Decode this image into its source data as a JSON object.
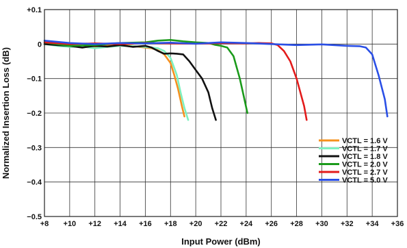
{
  "chart_data": {
    "type": "line",
    "title": "",
    "xlabel": "Input Power (dBm)",
    "ylabel": "Normalized Insertion Loss (dB)",
    "xlim": [
      8,
      36
    ],
    "ylim": [
      -0.5,
      0.1
    ],
    "xticks": [
      8,
      10,
      12,
      14,
      16,
      18,
      20,
      22,
      24,
      26,
      28,
      30,
      32,
      34,
      36
    ],
    "xtick_labels": [
      "+8",
      "+10",
      "+12",
      "+14",
      "+16",
      "+18",
      "+20",
      "+22",
      "+24",
      "+26",
      "+28",
      "+30",
      "+32",
      "+34",
      "+36"
    ],
    "yticks": [
      0.1,
      0,
      -0.1,
      -0.2,
      -0.3,
      -0.4,
      -0.5
    ],
    "ytick_labels": [
      "+0.1",
      "0",
      "−0.1",
      "−0.2",
      "−0.3",
      "−0.4",
      "−0.5"
    ],
    "grid": true,
    "legend_position": "bottom-right",
    "series": [
      {
        "name": "VCTL = 1.6 V",
        "color": "#f5901e",
        "x": [
          8,
          9,
          10,
          11,
          12,
          13,
          14,
          15,
          15.5,
          16,
          16.5,
          17,
          17.5,
          18,
          18.3,
          18.6,
          18.9,
          19.1
        ],
        "y": [
          0,
          -0.003,
          -0.005,
          -0.008,
          -0.01,
          -0.005,
          -0.003,
          -0.005,
          -0.008,
          -0.01,
          -0.012,
          -0.018,
          -0.03,
          -0.055,
          -0.09,
          -0.13,
          -0.18,
          -0.21
        ]
      },
      {
        "name": "VCTL = 1.7 V",
        "color": "#7ef0bf",
        "x": [
          8,
          9,
          10,
          11,
          12,
          13,
          14,
          15,
          16,
          16.5,
          17,
          17.5,
          18,
          18.5,
          18.8,
          19.1,
          19.4
        ],
        "y": [
          0,
          -0.005,
          -0.008,
          -0.007,
          -0.012,
          -0.008,
          -0.005,
          -0.006,
          -0.008,
          -0.01,
          -0.012,
          -0.02,
          -0.04,
          -0.09,
          -0.14,
          -0.185,
          -0.22
        ]
      },
      {
        "name": "VCTL = 1.8 V",
        "color": "#111111",
        "x": [
          8,
          9,
          10,
          11,
          12,
          13,
          14,
          15,
          16,
          16.5,
          17,
          17.5,
          18,
          18.5,
          19,
          19.5,
          20,
          20.5,
          21,
          21.3,
          21.6
        ],
        "y": [
          0,
          -0.003,
          -0.005,
          -0.01,
          -0.005,
          -0.007,
          -0.003,
          -0.008,
          -0.005,
          -0.01,
          -0.02,
          -0.028,
          -0.027,
          -0.028,
          -0.03,
          -0.05,
          -0.075,
          -0.1,
          -0.14,
          -0.185,
          -0.22
        ]
      },
      {
        "name": "VCTL = 2.0 V",
        "color": "#1a9a1a",
        "x": [
          8,
          10,
          12,
          14,
          16,
          17,
          18,
          19,
          20,
          21,
          21.5,
          22,
          22.5,
          23,
          23.5,
          23.8,
          24.1
        ],
        "y": [
          0.005,
          -0.005,
          -0.003,
          0.003,
          0.005,
          0.01,
          0.012,
          0.008,
          0.005,
          0.003,
          -0.002,
          -0.005,
          -0.01,
          -0.035,
          -0.1,
          -0.15,
          -0.2
        ]
      },
      {
        "name": "VCTL = 2.7 V",
        "color": "#e31b1b",
        "x": [
          8,
          10,
          12,
          14,
          16,
          18,
          20,
          22,
          24,
          25,
          26,
          26.5,
          27,
          27.5,
          28,
          28.3,
          28.6,
          28.8
        ],
        "y": [
          0.005,
          0,
          0.002,
          0,
          0.003,
          0.002,
          0.001,
          0.003,
          0.002,
          0.003,
          0.002,
          -0.003,
          -0.02,
          -0.05,
          -0.1,
          -0.14,
          -0.18,
          -0.22
        ]
      },
      {
        "name": "VCTL = 5.0 V",
        "color": "#2a4fe6",
        "x": [
          8,
          10,
          12,
          14,
          16,
          18,
          20,
          22,
          24,
          26,
          28,
          30,
          32,
          33,
          33.5,
          34,
          34.5,
          35,
          35.2
        ],
        "y": [
          0.01,
          0.003,
          0,
          0.003,
          0.002,
          0.004,
          0.001,
          0.005,
          0.003,
          0,
          -0.003,
          -0.001,
          -0.005,
          -0.006,
          -0.01,
          -0.03,
          -0.09,
          -0.16,
          -0.21
        ]
      }
    ]
  }
}
